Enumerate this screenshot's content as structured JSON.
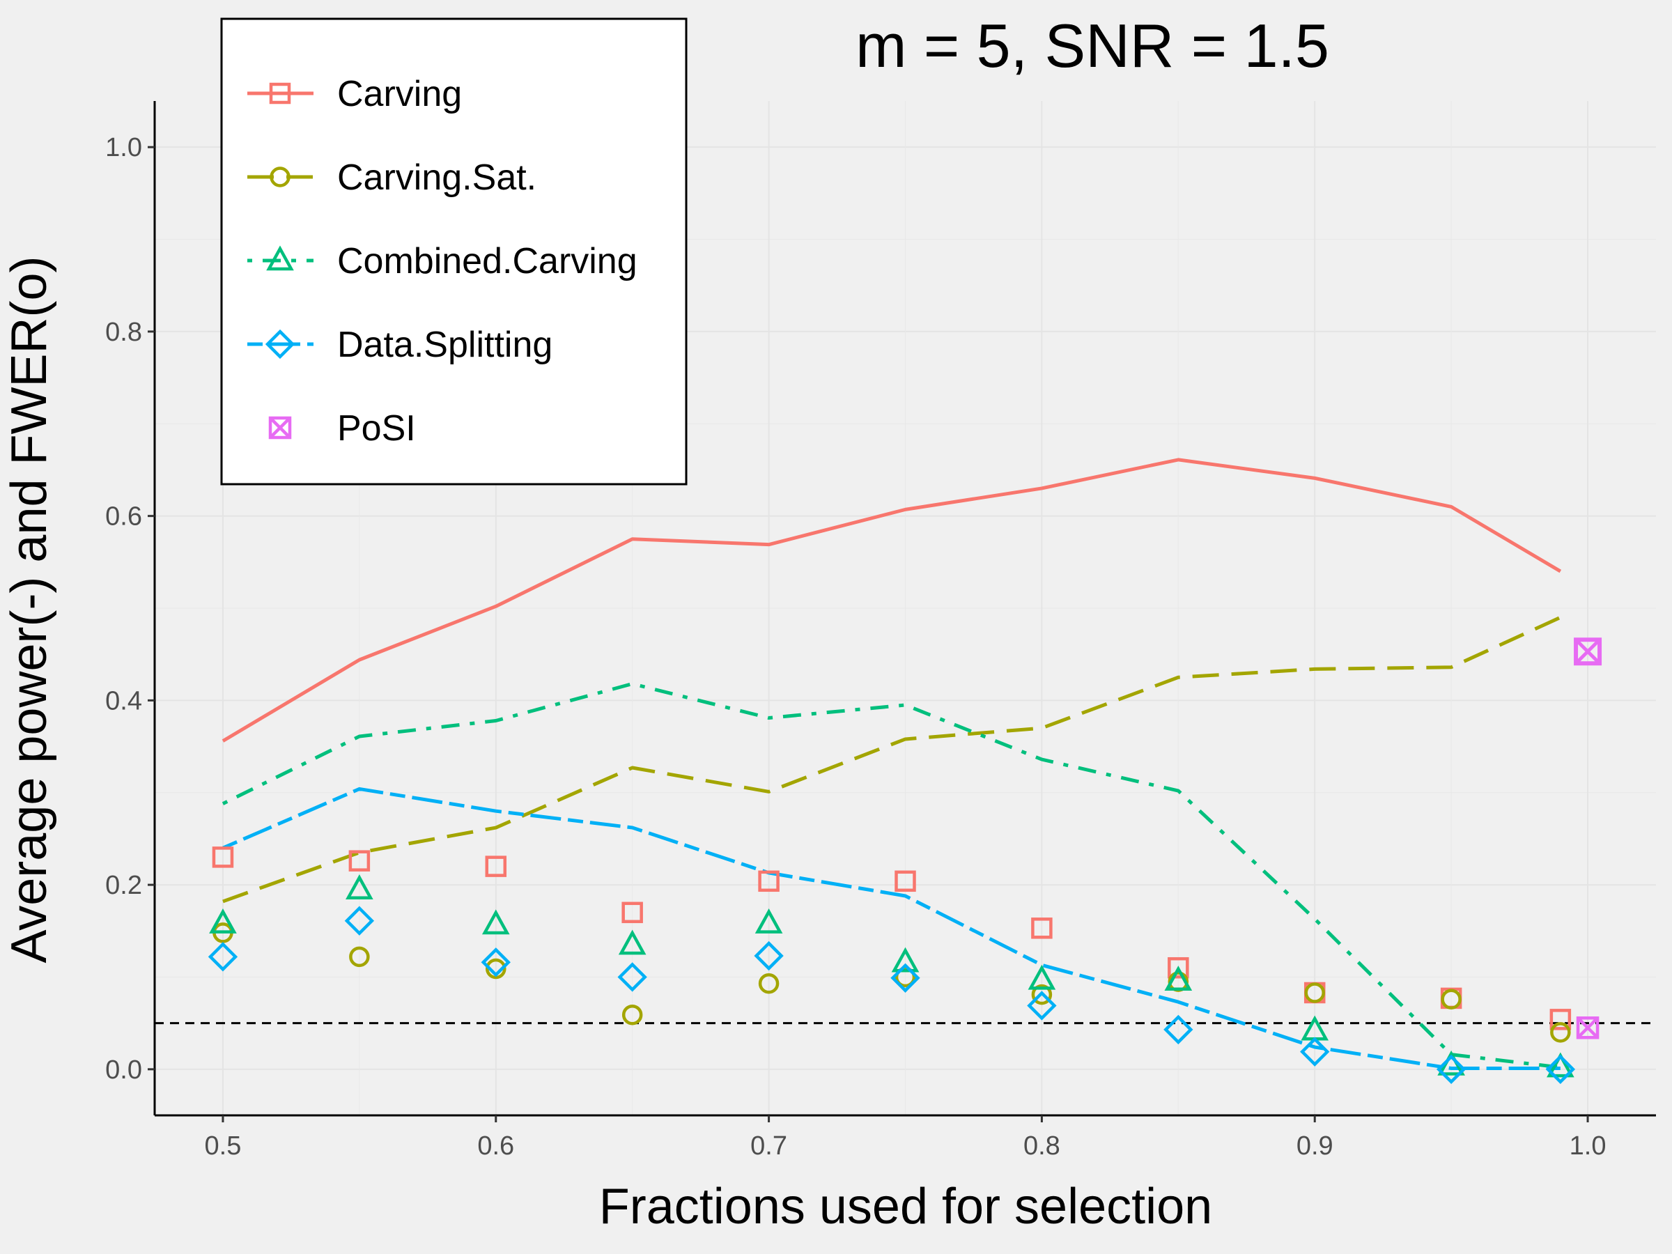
{
  "chart_data": {
    "type": "line",
    "title": "m = 5, SNR = 1.5",
    "xlabel": "Fractions used for selection",
    "ylabel": "Average power(-) and FWER(o)",
    "xlim": [
      0.475,
      1.025
    ],
    "ylim": [
      -0.05,
      1.05
    ],
    "x_ticks": [
      "0.5",
      "0.6",
      "0.7",
      "0.8",
      "0.9",
      "1.0"
    ],
    "y_ticks": [
      "0.0",
      "0.2",
      "0.4",
      "0.6",
      "0.8",
      "1.0"
    ],
    "grid": true,
    "legend_position": "top-left",
    "reference_line": {
      "y": 0.05,
      "style": "dashed",
      "color": "#000000"
    },
    "series": [
      {
        "name": "Carving",
        "color": "#F8766D",
        "line_style": "solid",
        "marker": "square",
        "power": {
          "x": [
            0.5,
            0.55,
            0.6,
            0.65,
            0.7,
            0.75,
            0.8,
            0.85,
            0.9,
            0.95,
            0.99
          ],
          "y": [
            0.356,
            0.444,
            0.502,
            0.575,
            0.569,
            0.607,
            0.63,
            0.661,
            0.641,
            0.61,
            0.54
          ]
        },
        "fwer": {
          "x": [
            0.5,
            0.55,
            0.6,
            0.65,
            0.7,
            0.75,
            0.8,
            0.85,
            0.9,
            0.95,
            0.99
          ],
          "y": [
            0.23,
            0.226,
            0.22,
            0.17,
            0.204,
            0.204,
            0.153,
            0.11,
            0.083,
            0.077,
            0.054
          ]
        }
      },
      {
        "name": "Carving.Sat.",
        "color": "#A3A500",
        "line_style": "longdash",
        "marker": "circle",
        "power": {
          "x": [
            0.5,
            0.55,
            0.6,
            0.65,
            0.7,
            0.75,
            0.8,
            0.85,
            0.9,
            0.95,
            0.99
          ],
          "y": [
            0.182,
            0.235,
            0.262,
            0.327,
            0.301,
            0.358,
            0.37,
            0.425,
            0.434,
            0.436,
            0.49
          ]
        },
        "fwer": {
          "x": [
            0.5,
            0.55,
            0.6,
            0.65,
            0.7,
            0.75,
            0.8,
            0.85,
            0.9,
            0.95,
            0.99
          ],
          "y": [
            0.148,
            0.122,
            0.109,
            0.059,
            0.093,
            0.1,
            0.081,
            0.095,
            0.083,
            0.076,
            0.04
          ]
        }
      },
      {
        "name": "Combined.Carving",
        "color": "#00BF7D",
        "line_style": "dotdash",
        "marker": "triangle",
        "power": {
          "x": [
            0.5,
            0.55,
            0.6,
            0.65,
            0.7,
            0.75,
            0.8,
            0.85,
            0.9,
            0.95,
            0.99
          ],
          "y": [
            0.288,
            0.361,
            0.378,
            0.418,
            0.381,
            0.395,
            0.336,
            0.302,
            0.163,
            0.016,
            0.002
          ]
        },
        "fwer": {
          "x": [
            0.5,
            0.55,
            0.6,
            0.65,
            0.7,
            0.75,
            0.8,
            0.85,
            0.9,
            0.95,
            0.99
          ],
          "y": [
            0.158,
            0.195,
            0.157,
            0.135,
            0.158,
            0.116,
            0.097,
            0.096,
            0.042,
            0.004,
            0.002
          ]
        }
      },
      {
        "name": "Data.Splitting",
        "color": "#00B0F6",
        "line_style": "twodash",
        "marker": "diamond",
        "power": {
          "x": [
            0.5,
            0.55,
            0.6,
            0.65,
            0.7,
            0.75,
            0.8,
            0.85,
            0.9,
            0.95,
            0.99
          ],
          "y": [
            0.24,
            0.304,
            0.28,
            0.262,
            0.213,
            0.188,
            0.113,
            0.073,
            0.024,
            0.001,
            0.001
          ]
        },
        "fwer": {
          "x": [
            0.5,
            0.55,
            0.6,
            0.65,
            0.7,
            0.75,
            0.8,
            0.85,
            0.9,
            0.95,
            0.99
          ],
          "y": [
            0.122,
            0.161,
            0.116,
            0.1,
            0.123,
            0.099,
            0.069,
            0.043,
            0.019,
            0.0,
            0.0
          ]
        }
      },
      {
        "name": "PoSI",
        "color": "#E76BF3",
        "line_style": "none",
        "marker": "square-x",
        "power_point": {
          "x": 1.0,
          "y": 0.453
        },
        "fwer": {
          "x": [
            1.0
          ],
          "y": [
            0.045
          ]
        }
      }
    ]
  }
}
